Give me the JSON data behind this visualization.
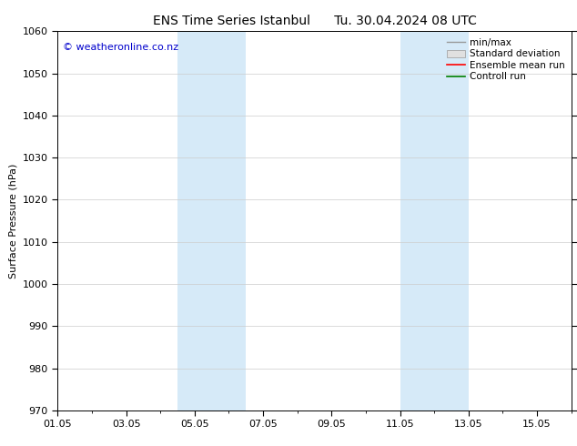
{
  "title": "ENS Time Series Istanbul",
  "title2": "Tu. 30.04.2024 08 UTC",
  "ylabel": "Surface Pressure (hPa)",
  "ylim": [
    970,
    1060
  ],
  "yticks": [
    970,
    980,
    990,
    1000,
    1010,
    1020,
    1030,
    1040,
    1050,
    1060
  ],
  "xlim": [
    0,
    15
  ],
  "xtick_labels": [
    "01.05",
    "03.05",
    "05.05",
    "07.05",
    "09.05",
    "11.05",
    "13.05",
    "15.05"
  ],
  "xtick_positions": [
    0,
    2,
    4,
    6,
    8,
    10,
    12,
    14
  ],
  "shaded_regions": [
    {
      "start": 3.5,
      "end": 5.5
    },
    {
      "start": 10.0,
      "end": 12.0
    }
  ],
  "shaded_color": "#d6eaf8",
  "watermark": "© weatheronline.co.nz",
  "watermark_color": "#0000cc",
  "watermark_fontsize": 8,
  "background_color": "#ffffff",
  "grid_color": "#cccccc",
  "tick_label_fontsize": 8,
  "axis_label_fontsize": 8,
  "title_fontsize": 10,
  "legend_fontsize": 7.5
}
